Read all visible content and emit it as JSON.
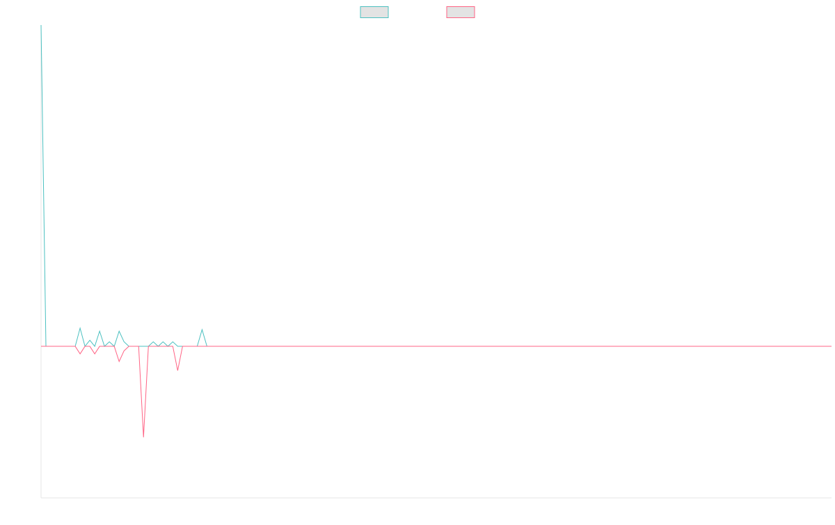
{
  "chart_data": {
    "type": "line",
    "title": "",
    "xlabel": "",
    "ylabel": "",
    "grid": false,
    "legend": {
      "placement": "top-center"
    },
    "x": [
      0,
      1,
      2,
      3,
      4,
      5,
      6,
      7,
      8,
      9,
      10,
      11,
      12,
      13,
      14,
      15,
      16,
      17,
      18,
      19,
      20,
      21,
      22,
      23,
      24,
      25,
      26,
      27,
      28,
      29,
      30,
      31,
      32,
      33,
      34,
      35,
      36,
      37,
      38,
      39,
      40,
      41,
      42,
      43,
      44,
      45,
      46,
      47,
      48,
      49,
      50,
      51,
      52,
      53,
      54,
      55,
      56,
      57,
      58,
      59,
      60,
      61,
      62,
      63,
      64,
      65,
      66,
      67,
      68,
      69,
      70,
      71,
      72,
      73,
      74,
      75,
      76,
      77,
      78,
      79,
      80,
      81,
      82,
      83,
      84,
      85,
      86,
      87,
      88,
      89,
      90,
      91,
      92,
      93,
      94,
      95,
      96,
      97,
      98,
      99,
      100,
      101,
      102,
      103,
      104,
      105,
      106,
      107,
      108,
      109,
      110,
      111,
      112,
      113,
      114,
      115,
      116,
      117,
      118,
      119,
      120,
      121,
      122,
      123,
      124,
      125,
      126,
      127,
      128,
      129,
      130,
      131,
      132,
      133,
      134,
      135,
      136,
      137,
      138,
      139,
      140,
      141,
      142,
      143,
      144,
      145,
      146,
      147,
      148,
      149,
      150,
      151,
      152,
      153,
      154,
      155,
      156,
      157,
      158,
      159,
      160,
      161,
      162
    ],
    "ylim": [
      -100,
      212
    ],
    "series": [
      {
        "name": "",
        "color": "#4bc0c0",
        "fill": "#e3e3e3",
        "values": [
          212,
          0,
          0,
          0,
          0,
          0,
          0,
          0,
          12,
          0,
          4,
          0,
          10,
          0,
          3,
          0,
          10,
          3,
          0,
          0,
          0,
          0,
          0,
          3,
          0,
          3,
          0,
          3,
          0,
          0,
          0,
          0,
          0,
          11,
          0,
          0,
          0,
          0,
          0,
          0,
          0,
          0,
          0,
          0,
          0,
          0,
          0,
          0,
          0,
          0,
          0,
          0,
          0,
          0,
          0,
          0,
          0,
          0,
          0,
          0,
          0,
          0,
          0,
          0,
          0,
          0,
          0,
          0,
          0,
          0,
          0,
          0,
          0,
          0,
          0,
          0,
          0,
          0,
          0,
          0,
          0,
          0,
          0,
          0,
          0,
          0,
          0,
          0,
          0,
          0,
          0,
          0,
          0,
          0,
          0,
          0,
          0,
          0,
          0,
          0,
          0,
          0,
          0,
          0,
          0,
          0,
          0,
          0,
          0,
          0,
          0,
          0,
          0,
          0,
          0,
          0,
          0,
          0,
          0,
          0,
          0,
          0,
          0,
          0,
          0,
          0,
          0,
          0,
          0,
          0,
          0,
          0,
          0,
          0,
          0,
          0,
          0,
          0,
          0,
          0,
          0,
          0,
          0,
          0,
          0,
          0,
          0,
          0,
          0,
          0,
          0,
          0,
          0,
          0,
          0,
          0,
          0,
          0,
          0,
          0,
          0,
          0,
          0
        ]
      },
      {
        "name": "",
        "color": "#ff6384",
        "fill": "#e3e3e3",
        "values": [
          0,
          0,
          0,
          0,
          0,
          0,
          0,
          0,
          -5,
          0,
          0,
          -5,
          0,
          0,
          0,
          0,
          -10,
          -3,
          0,
          0,
          0,
          -60,
          0,
          0,
          0,
          0,
          0,
          0,
          -16,
          0,
          0,
          0,
          0,
          0,
          0,
          0,
          0,
          0,
          0,
          0,
          0,
          0,
          0,
          0,
          0,
          0,
          0,
          0,
          0,
          0,
          0,
          0,
          0,
          0,
          0,
          0,
          0,
          0,
          0,
          0,
          0,
          0,
          0,
          0,
          0,
          0,
          0,
          0,
          0,
          0,
          0,
          0,
          0,
          0,
          0,
          0,
          0,
          0,
          0,
          0,
          0,
          0,
          0,
          0,
          0,
          0,
          0,
          0,
          0,
          0,
          0,
          0,
          0,
          0,
          0,
          0,
          0,
          0,
          0,
          0,
          0,
          0,
          0,
          0,
          0,
          0,
          0,
          0,
          0,
          0,
          0,
          0,
          0,
          0,
          0,
          0,
          0,
          0,
          0,
          0,
          0,
          0,
          0,
          0,
          0,
          0,
          0,
          0,
          0,
          0,
          0,
          0,
          0,
          0,
          0,
          0,
          0,
          0,
          0,
          0,
          0,
          0,
          0,
          0,
          0,
          0,
          0,
          0,
          0,
          0,
          0,
          0,
          0,
          0,
          0,
          0,
          0,
          0,
          0,
          0,
          0,
          0,
          0
        ]
      }
    ]
  }
}
